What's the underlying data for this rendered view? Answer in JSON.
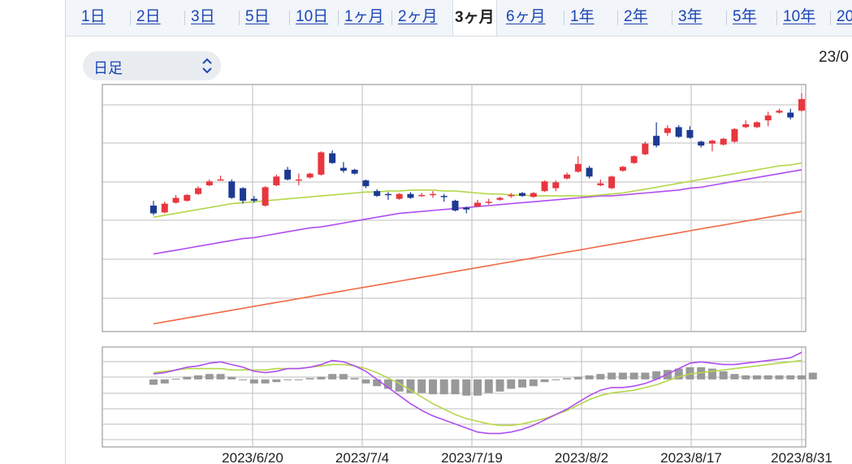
{
  "tabs": [
    {
      "label": "1日",
      "active": false
    },
    {
      "label": "2日",
      "active": false
    },
    {
      "label": "3日",
      "active": false
    },
    {
      "label": "5日",
      "active": false
    },
    {
      "label": "10日",
      "active": false
    },
    {
      "label": "1ヶ月",
      "active": false
    },
    {
      "label": "2ヶ月",
      "active": false
    },
    {
      "label": "3ヶ月",
      "active": true
    },
    {
      "label": "6ヶ月",
      "active": false
    },
    {
      "label": "1年",
      "active": false
    },
    {
      "label": "2年",
      "active": false
    },
    {
      "label": "3年",
      "active": false
    },
    {
      "label": "5年",
      "active": false
    },
    {
      "label": "10年",
      "active": false
    },
    {
      "label": "20",
      "active": false
    }
  ],
  "period_select": {
    "value": "日足",
    "icon": "chevron-updown-icon"
  },
  "date_readout": "23/0",
  "chart_data": [
    {
      "type": "candlestick",
      "x_tick_labels": [
        "2023/6/20",
        "2023/7/4",
        "2023/7/19",
        "2023/8/2",
        "2023/8/17",
        "2023/8/31"
      ],
      "grid": true,
      "colors": {
        "up": "#e8363e",
        "down": "#1c3a93",
        "ma_short": "#b5d64a",
        "ma_mid": "#b04ef0",
        "ma_long": "#f06a45"
      },
      "candles": [
        {
          "o": 50,
          "c": 42,
          "h": 55,
          "l": 40
        },
        {
          "o": 43,
          "c": 52,
          "h": 54,
          "l": 42
        },
        {
          "o": 53,
          "c": 58,
          "h": 61,
          "l": 52
        },
        {
          "o": 55,
          "c": 61,
          "h": 62,
          "l": 54
        },
        {
          "o": 62,
          "c": 68,
          "h": 70,
          "l": 61
        },
        {
          "o": 71,
          "c": 75,
          "h": 77,
          "l": 70
        },
        {
          "o": 77,
          "c": 77,
          "h": 81,
          "l": 76
        },
        {
          "o": 75,
          "c": 58,
          "h": 77,
          "l": 57
        },
        {
          "o": 68,
          "c": 55,
          "h": 69,
          "l": 52
        },
        {
          "o": 57,
          "c": 55,
          "h": 60,
          "l": 53
        },
        {
          "o": 50,
          "c": 69,
          "h": 70,
          "l": 49
        },
        {
          "o": 71,
          "c": 80,
          "h": 82,
          "l": 70
        },
        {
          "o": 87,
          "c": 77,
          "h": 90,
          "l": 76
        },
        {
          "o": 76,
          "c": 77,
          "h": 83,
          "l": 71
        },
        {
          "o": 79,
          "c": 83,
          "h": 84,
          "l": 78
        },
        {
          "o": 82,
          "c": 105,
          "h": 106,
          "l": 81
        },
        {
          "o": 104,
          "c": 94,
          "h": 107,
          "l": 93
        },
        {
          "o": 89,
          "c": 86,
          "h": 95,
          "l": 84
        },
        {
          "o": 87,
          "c": 83,
          "h": 88,
          "l": 82
        },
        {
          "o": 76,
          "c": 70,
          "h": 77,
          "l": 68
        },
        {
          "o": 65,
          "c": 60,
          "h": 67,
          "l": 59
        },
        {
          "o": 62,
          "c": 61,
          "h": 64,
          "l": 56
        },
        {
          "o": 57,
          "c": 62,
          "h": 63,
          "l": 56
        },
        {
          "o": 62,
          "c": 58,
          "h": 64,
          "l": 57
        },
        {
          "o": 61,
          "c": 61,
          "h": 63,
          "l": 59
        },
        {
          "o": 62,
          "c": 62,
          "h": 65,
          "l": 58
        },
        {
          "o": 60,
          "c": 59,
          "h": 62,
          "l": 54
        },
        {
          "o": 55,
          "c": 45,
          "h": 56,
          "l": 44
        },
        {
          "o": 48,
          "c": 46,
          "h": 49,
          "l": 42
        },
        {
          "o": 49,
          "c": 53,
          "h": 56,
          "l": 49
        },
        {
          "o": 54,
          "c": 54,
          "h": 57,
          "l": 51
        },
        {
          "o": 56,
          "c": 58,
          "h": 59,
          "l": 55
        },
        {
          "o": 61,
          "c": 61,
          "h": 63,
          "l": 58
        },
        {
          "o": 63,
          "c": 60,
          "h": 64,
          "l": 59
        },
        {
          "o": 59,
          "c": 63,
          "h": 64,
          "l": 58
        },
        {
          "o": 65,
          "c": 75,
          "h": 76,
          "l": 64
        },
        {
          "o": 68,
          "c": 74,
          "h": 76,
          "l": 65
        },
        {
          "o": 78,
          "c": 82,
          "h": 84,
          "l": 77
        },
        {
          "o": 85,
          "c": 93,
          "h": 101,
          "l": 84
        },
        {
          "o": 89,
          "c": 80,
          "h": 91,
          "l": 78
        },
        {
          "o": 71,
          "c": 73,
          "h": 77,
          "l": 70
        },
        {
          "o": 68,
          "c": 80,
          "h": 81,
          "l": 67
        },
        {
          "o": 86,
          "c": 90,
          "h": 91,
          "l": 85
        },
        {
          "o": 94,
          "c": 101,
          "h": 102,
          "l": 93
        },
        {
          "o": 103,
          "c": 114,
          "h": 116,
          "l": 102
        },
        {
          "o": 122,
          "c": 112,
          "h": 136,
          "l": 110
        },
        {
          "o": 125,
          "c": 130,
          "h": 133,
          "l": 122
        },
        {
          "o": 131,
          "c": 121,
          "h": 133,
          "l": 120
        },
        {
          "o": 128,
          "c": 120,
          "h": 132,
          "l": 119
        },
        {
          "o": 116,
          "c": 112,
          "h": 117,
          "l": 110
        },
        {
          "o": 114,
          "c": 117,
          "h": 118,
          "l": 106
        },
        {
          "o": 113,
          "c": 119,
          "h": 120,
          "l": 112
        },
        {
          "o": 116,
          "c": 129,
          "h": 130,
          "l": 115
        },
        {
          "o": 131,
          "c": 134,
          "h": 138,
          "l": 130
        },
        {
          "o": 131,
          "c": 136,
          "h": 137,
          "l": 130
        },
        {
          "o": 138,
          "c": 143,
          "h": 147,
          "l": 132
        },
        {
          "o": 146,
          "c": 148,
          "h": 150,
          "l": 145
        },
        {
          "o": 146,
          "c": 141,
          "h": 150,
          "l": 139
        },
        {
          "o": 148,
          "c": 160,
          "h": 166,
          "l": 147
        }
      ],
      "ma_short": [
        38,
        40,
        42,
        44,
        46,
        48,
        50,
        52,
        53,
        54,
        55,
        56,
        57,
        58,
        59,
        60,
        61,
        62,
        63,
        64,
        64,
        65,
        65,
        66,
        66,
        66,
        65,
        65,
        64,
        63,
        62,
        62,
        61,
        61,
        60,
        60,
        60,
        60,
        60,
        60,
        61,
        62,
        63,
        65,
        67,
        69,
        71,
        73,
        75,
        77,
        79,
        81,
        83,
        85,
        87,
        89,
        91,
        92,
        94
      ],
      "ma_mid": [
        0,
        2,
        4,
        6,
        8,
        10,
        12,
        14,
        16,
        17,
        19,
        21,
        23,
        25,
        27,
        28,
        30,
        32,
        34,
        36,
        38,
        40,
        42,
        43,
        44,
        45,
        46,
        47,
        48,
        49,
        50,
        51,
        52,
        53,
        54,
        55,
        56,
        57,
        58,
        59,
        60,
        60,
        61,
        62,
        63,
        64,
        65,
        66,
        68,
        69,
        71,
        73,
        75,
        77,
        79,
        81,
        83,
        85,
        87
      ],
      "ma_long": [
        -72,
        -70,
        -68,
        -66,
        -64,
        -62,
        -60,
        -58,
        -56,
        -54,
        -52,
        -50,
        -48,
        -46,
        -44,
        -42,
        -40,
        -38,
        -36,
        -34,
        -32,
        -30,
        -28,
        -26,
        -24,
        -22,
        -20,
        -18,
        -16,
        -14,
        -12,
        -10,
        -8,
        -6,
        -4,
        -2,
        0,
        2,
        4,
        6,
        8,
        10,
        12,
        14,
        16,
        18,
        20,
        22,
        24,
        26,
        28,
        30,
        32,
        34,
        36,
        38,
        40,
        42,
        44
      ]
    },
    {
      "type": "macd",
      "grid": true,
      "colors": {
        "macd": "#b04ef0",
        "signal": "#b5d64a",
        "histogram": "#999999"
      },
      "macd": [
        0.4,
        0.5,
        0.7,
        0.9,
        1.0,
        1.2,
        1.3,
        1.1,
        0.9,
        0.6,
        0.5,
        0.6,
        0.8,
        0.8,
        0.9,
        1.1,
        1.4,
        1.3,
        1.0,
        0.6,
        0.0,
        -0.6,
        -1.2,
        -1.8,
        -2.3,
        -2.7,
        -3.0,
        -3.3,
        -3.6,
        -3.9,
        -4.0,
        -4.0,
        -3.9,
        -3.7,
        -3.4,
        -3.0,
        -2.6,
        -2.2,
        -1.7,
        -1.2,
        -0.8,
        -0.6,
        -0.6,
        -0.5,
        -0.3,
        0.0,
        0.4,
        0.8,
        1.2,
        1.3,
        1.2,
        1.1,
        1.1,
        1.2,
        1.3,
        1.4,
        1.5,
        1.6,
        2.0
      ],
      "signal": [
        0.5,
        0.6,
        0.7,
        0.8,
        0.8,
        0.8,
        0.8,
        0.7,
        0.7,
        0.7,
        0.7,
        0.8,
        0.8,
        0.8,
        0.9,
        1.0,
        1.1,
        1.1,
        1.0,
        0.8,
        0.5,
        0.1,
        -0.3,
        -0.8,
        -1.3,
        -1.8,
        -2.2,
        -2.6,
        -2.9,
        -3.1,
        -3.3,
        -3.4,
        -3.4,
        -3.3,
        -3.1,
        -2.9,
        -2.6,
        -2.3,
        -1.9,
        -1.5,
        -1.2,
        -1.0,
        -0.9,
        -0.8,
        -0.6,
        -0.4,
        -0.1,
        0.2,
        0.4,
        0.5,
        0.6,
        0.7,
        0.8,
        0.9,
        1.0,
        1.1,
        1.2,
        1.3,
        1.4
      ],
      "histogram": [
        -0.4,
        -0.3,
        0.05,
        0.2,
        0.3,
        0.4,
        0.4,
        0.2,
        0.0,
        -0.3,
        -0.3,
        -0.2,
        0.0,
        0.0,
        0.1,
        0.2,
        0.4,
        0.4,
        0.1,
        -0.3,
        -0.5,
        -0.7,
        -0.9,
        -1.0,
        -1.0,
        -1.1,
        -1.1,
        -1.1,
        -1.2,
        -1.2,
        -1.0,
        -0.9,
        -0.7,
        -0.6,
        -0.5,
        -0.2,
        0.0,
        0.1,
        0.2,
        0.3,
        0.4,
        0.5,
        0.5,
        0.5,
        0.5,
        0.6,
        0.7,
        0.8,
        0.9,
        0.9,
        0.8,
        0.6,
        0.4,
        0.3,
        0.3,
        0.3,
        0.3,
        0.3,
        0.3,
        0.5
      ]
    }
  ]
}
